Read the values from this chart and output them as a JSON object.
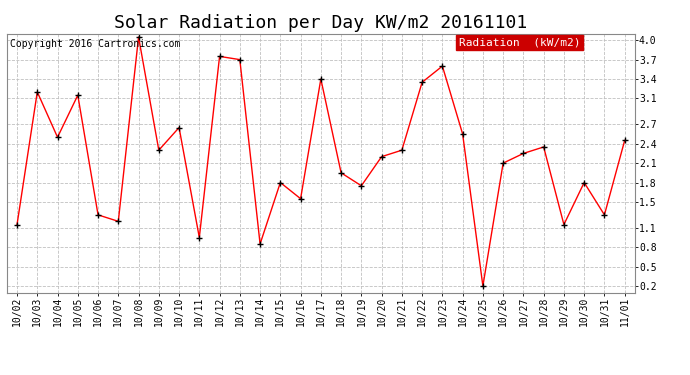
{
  "title": "Solar Radiation per Day KW/m2 20161101",
  "copyright_text": "Copyright 2016 Cartronics.com",
  "legend_label": "Radiation  (kW/m2)",
  "dates": [
    "10/02",
    "10/03",
    "10/04",
    "10/05",
    "10/06",
    "10/07",
    "10/08",
    "10/09",
    "10/10",
    "10/11",
    "10/12",
    "10/13",
    "10/14",
    "10/15",
    "10/16",
    "10/17",
    "10/18",
    "10/19",
    "10/20",
    "10/21",
    "10/22",
    "10/23",
    "10/24",
    "10/25",
    "10/26",
    "10/27",
    "10/28",
    "10/29",
    "10/30",
    "10/31",
    "11/01"
  ],
  "values": [
    1.15,
    3.2,
    2.5,
    3.15,
    1.3,
    1.2,
    4.05,
    2.3,
    2.65,
    0.95,
    3.75,
    3.7,
    0.85,
    1.8,
    1.55,
    3.4,
    1.95,
    1.75,
    2.2,
    2.3,
    3.35,
    3.6,
    2.55,
    0.2,
    2.1,
    2.25,
    2.35,
    1.15,
    1.8,
    1.3,
    2.45
  ],
  "line_color": "red",
  "marker": "+",
  "marker_color": "black",
  "ylim": [
    0.1,
    4.1
  ],
  "yticks": [
    0.2,
    0.5,
    0.8,
    1.1,
    1.5,
    1.8,
    2.1,
    2.4,
    2.7,
    3.1,
    3.4,
    3.7,
    4.0
  ],
  "bg_color": "#ffffff",
  "grid_color": "#c0c0c0",
  "legend_bg": "#cc0000",
  "legend_text_color": "#ffffff",
  "title_fontsize": 13,
  "copyright_fontsize": 7,
  "tick_fontsize": 7,
  "legend_fontsize": 8,
  "fig_width": 6.9,
  "fig_height": 3.75,
  "dpi": 100
}
